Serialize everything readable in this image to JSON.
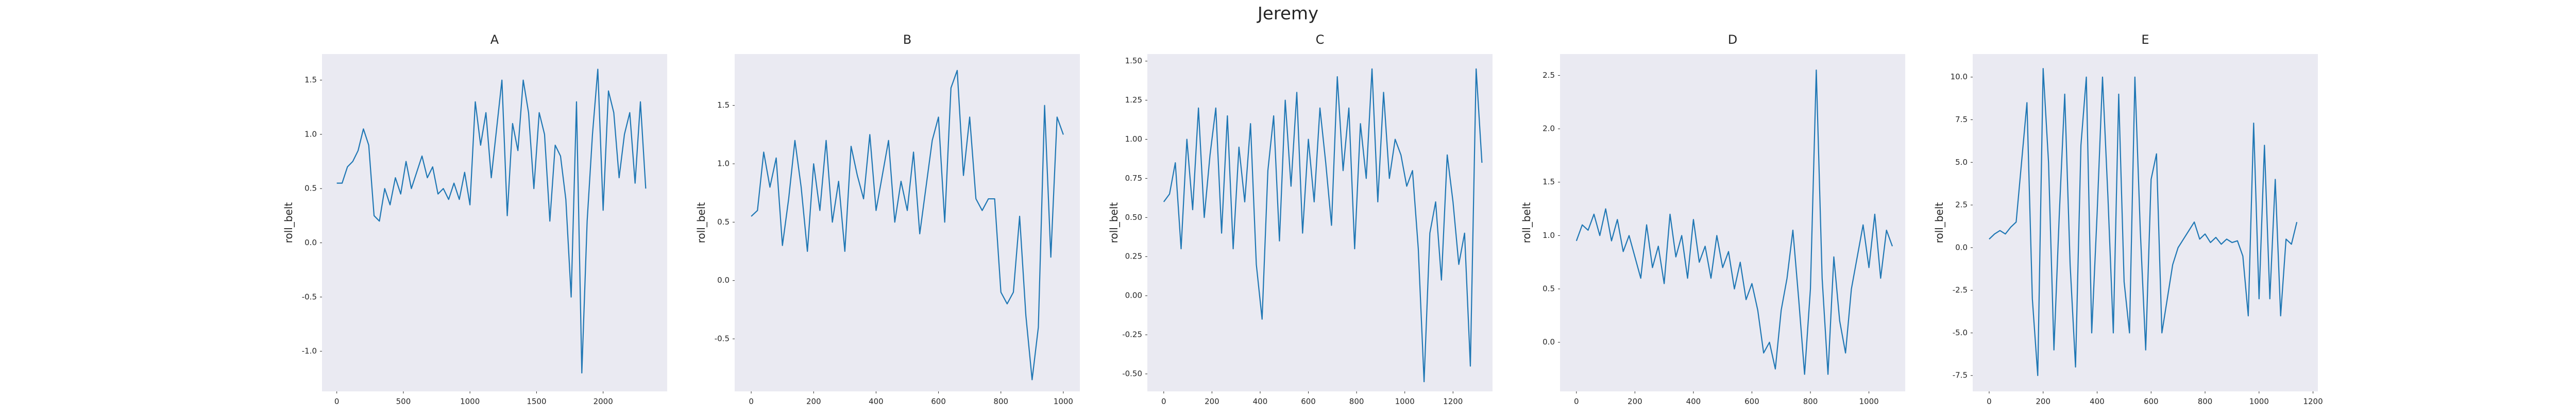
{
  "title": "Jeremy",
  "chart_data": [
    {
      "type": "line",
      "title": "A",
      "y_label": "roll_belt",
      "color": "#1f77b4",
      "grid": false,
      "x": [
        0,
        40,
        80,
        120,
        160,
        200,
        240,
        280,
        320,
        360,
        400,
        440,
        480,
        520,
        560,
        600,
        640,
        680,
        720,
        760,
        800,
        840,
        880,
        920,
        960,
        1000,
        1040,
        1080,
        1120,
        1160,
        1200,
        1240,
        1280,
        1320,
        1360,
        1400,
        1440,
        1480,
        1520,
        1560,
        1600,
        1640,
        1680,
        1720,
        1760,
        1800,
        1840,
        1880,
        1920,
        1960,
        2000,
        2040,
        2080,
        2120,
        2160,
        2200,
        2240,
        2280,
        2320
      ],
      "values": [
        0.55,
        0.55,
        0.7,
        0.75,
        0.85,
        1.05,
        0.9,
        0.25,
        0.2,
        0.5,
        0.35,
        0.6,
        0.45,
        0.75,
        0.5,
        0.65,
        0.8,
        0.6,
        0.7,
        0.45,
        0.5,
        0.4,
        0.55,
        0.4,
        0.65,
        0.35,
        1.3,
        0.9,
        1.2,
        0.6,
        1.05,
        1.5,
        0.25,
        1.1,
        0.85,
        1.5,
        1.2,
        0.5,
        1.2,
        1.0,
        0.2,
        0.9,
        0.8,
        0.4,
        -0.5,
        1.3,
        -1.2,
        0.2,
        1.0,
        1.6,
        0.3,
        1.4,
        1.2,
        0.6,
        1.0,
        1.2,
        0.55,
        1.3,
        0.5
      ],
      "xlim": [
        -111,
        2481
      ],
      "ylim": [
        -1.37,
        1.74
      ],
      "xticks": [
        0,
        500,
        1000,
        1500,
        2000
      ],
      "yticks": [
        {
          "value": -1.0,
          "label": "-1.0"
        },
        -0.5,
        {
          "value": 0.0,
          "label": "0.0"
        },
        0.5,
        {
          "value": 1.0,
          "label": "1.0"
        },
        1.5
      ]
    },
    {
      "type": "line",
      "title": "B",
      "y_label": "roll_belt",
      "color": "#1f77b4",
      "grid": false,
      "x": [
        0,
        20,
        40,
        60,
        80,
        100,
        120,
        140,
        160,
        180,
        200,
        220,
        240,
        260,
        280,
        300,
        320,
        340,
        360,
        380,
        400,
        420,
        440,
        460,
        480,
        500,
        520,
        540,
        560,
        580,
        600,
        620,
        640,
        660,
        680,
        700,
        720,
        740,
        760,
        780,
        800,
        820,
        840,
        860,
        880,
        900,
        920,
        940,
        960,
        980,
        1000
      ],
      "values": [
        0.55,
        0.6,
        1.1,
        0.8,
        1.05,
        0.3,
        0.7,
        1.2,
        0.8,
        0.25,
        1.0,
        0.6,
        1.2,
        0.5,
        0.85,
        0.25,
        1.15,
        0.9,
        0.7,
        1.25,
        0.6,
        0.9,
        1.2,
        0.5,
        0.85,
        0.6,
        1.1,
        0.4,
        0.8,
        1.2,
        1.4,
        0.5,
        1.65,
        1.8,
        0.9,
        1.4,
        0.7,
        0.6,
        0.7,
        0.7,
        -0.1,
        -0.2,
        -0.1,
        0.55,
        -0.3,
        -0.85,
        -0.4,
        1.5,
        0.2,
        1.4,
        1.25
      ],
      "xlim": [
        -53,
        1053
      ],
      "ylim": [
        -0.95,
        1.94
      ],
      "xticks": [
        0,
        200,
        400,
        600,
        800,
        1000
      ],
      "yticks": [
        -0.5,
        {
          "value": 0.0,
          "label": "0.0"
        },
        0.5,
        {
          "value": 1.0,
          "label": "1.0"
        },
        1.5
      ]
    },
    {
      "type": "line",
      "title": "C",
      "y_label": "roll_belt",
      "color": "#1f77b4",
      "grid": false,
      "x": [
        0,
        24,
        48,
        72,
        96,
        120,
        144,
        168,
        192,
        216,
        240,
        264,
        288,
        312,
        336,
        360,
        384,
        408,
        432,
        456,
        480,
        504,
        528,
        552,
        576,
        600,
        624,
        648,
        672,
        696,
        720,
        744,
        768,
        792,
        816,
        840,
        864,
        888,
        912,
        936,
        960,
        984,
        1008,
        1032,
        1056,
        1080,
        1104,
        1128,
        1152,
        1176,
        1200,
        1224,
        1248,
        1272,
        1296,
        1320
      ],
      "values": [
        0.6,
        0.65,
        0.85,
        0.3,
        1.0,
        0.55,
        1.2,
        0.5,
        0.9,
        1.2,
        0.4,
        1.15,
        0.3,
        0.95,
        0.6,
        1.1,
        0.2,
        -0.15,
        0.8,
        1.15,
        0.35,
        1.25,
        0.7,
        1.3,
        0.4,
        1.0,
        0.6,
        1.2,
        0.85,
        0.45,
        1.4,
        0.8,
        1.2,
        0.3,
        1.1,
        0.75,
        1.45,
        0.6,
        1.3,
        0.75,
        1.0,
        0.9,
        0.7,
        0.8,
        0.3,
        -0.55,
        0.4,
        0.6,
        0.1,
        0.9,
        0.6,
        0.2,
        0.4,
        -0.45,
        1.45,
        0.85
      ],
      "xlim": [
        -68,
        1364
      ],
      "ylim": [
        -0.612,
        1.545
      ],
      "xticks": [
        0,
        200,
        400,
        600,
        800,
        1000,
        1200
      ],
      "yticks": [
        {
          "value": -0.5,
          "label": "-0.50"
        },
        {
          "value": -0.25,
          "label": "-0.25"
        },
        {
          "value": 0.0,
          "label": "0.00"
        },
        {
          "value": 0.25,
          "label": "0.25"
        },
        {
          "value": 0.5,
          "label": "0.50"
        },
        {
          "value": 0.75,
          "label": "0.75"
        },
        {
          "value": 1.0,
          "label": "1.00"
        },
        {
          "value": 1.25,
          "label": "1.25"
        },
        {
          "value": 1.5,
          "label": "1.50"
        }
      ]
    },
    {
      "type": "line",
      "title": "D",
      "y_label": "roll_belt",
      "color": "#1f77b4",
      "grid": false,
      "x": [
        0,
        20,
        40,
        60,
        80,
        100,
        120,
        140,
        160,
        180,
        200,
        220,
        240,
        260,
        280,
        300,
        320,
        340,
        360,
        380,
        400,
        420,
        440,
        460,
        480,
        500,
        520,
        540,
        560,
        580,
        600,
        620,
        640,
        660,
        680,
        700,
        720,
        740,
        760,
        780,
        800,
        820,
        840,
        860,
        880,
        900,
        920,
        940,
        960,
        980,
        1000,
        1020,
        1040,
        1060,
        1080
      ],
      "values": [
        0.95,
        1.1,
        1.05,
        1.2,
        1.0,
        1.25,
        0.95,
        1.15,
        0.85,
        1.0,
        0.8,
        0.6,
        1.1,
        0.7,
        0.9,
        0.55,
        1.2,
        0.8,
        1.0,
        0.6,
        1.15,
        0.75,
        0.9,
        0.6,
        1.0,
        0.7,
        0.85,
        0.5,
        0.75,
        0.4,
        0.55,
        0.3,
        -0.1,
        0.0,
        -0.25,
        0.3,
        0.6,
        1.05,
        0.4,
        -0.3,
        0.5,
        2.55,
        0.6,
        -0.3,
        0.8,
        0.2,
        -0.1,
        0.5,
        0.8,
        1.1,
        0.7,
        1.2,
        0.6,
        1.05,
        0.9
      ],
      "xlim": [
        -56,
        1124
      ],
      "ylim": [
        -0.46,
        2.7
      ],
      "xticks": [
        0,
        200,
        400,
        600,
        800,
        1000
      ],
      "yticks": [
        {
          "value": 0.0,
          "label": "0.0"
        },
        0.5,
        {
          "value": 1.0,
          "label": "1.0"
        },
        1.5,
        {
          "value": 2.0,
          "label": "2.0"
        },
        2.5
      ]
    },
    {
      "type": "line",
      "title": "E",
      "y_label": "roll_belt",
      "color": "#1f77b4",
      "grid": false,
      "x": [
        0,
        20,
        40,
        60,
        80,
        100,
        120,
        140,
        160,
        180,
        200,
        220,
        240,
        260,
        280,
        300,
        320,
        340,
        360,
        380,
        400,
        420,
        440,
        460,
        480,
        500,
        520,
        540,
        560,
        580,
        600,
        620,
        640,
        660,
        680,
        700,
        720,
        740,
        760,
        780,
        800,
        820,
        840,
        860,
        880,
        900,
        920,
        940,
        960,
        980,
        1000,
        1020,
        1040,
        1060,
        1080,
        1100,
        1120,
        1140
      ],
      "values": [
        0.5,
        0.8,
        1.0,
        0.8,
        1.2,
        1.5,
        5,
        8.5,
        -3,
        -7.5,
        10.5,
        5,
        -6,
        2,
        9,
        -1,
        -7,
        6,
        10,
        -5,
        2,
        10,
        3,
        -5,
        9,
        -2,
        -5,
        10,
        1,
        -6,
        4,
        5.5,
        -5,
        -3,
        -1,
        0,
        0.5,
        1,
        1.5,
        0.5,
        0.8,
        0.3,
        0.6,
        0.2,
        0.5,
        0.3,
        0.4,
        -0.5,
        -4,
        7.3,
        -3,
        6,
        -3,
        4,
        -4,
        0.5,
        0.2,
        1.5
      ],
      "xlim": [
        -61,
        1218
      ],
      "ylim": [
        -8.43,
        11.35
      ],
      "xticks": [
        0,
        200,
        400,
        600,
        800,
        1000,
        1200
      ],
      "yticks": [
        -7.5,
        {
          "value": -5.0,
          "label": "-5.0"
        },
        -2.5,
        {
          "value": 0.0,
          "label": "0.0"
        },
        2.5,
        {
          "value": 5.0,
          "label": "5.0"
        },
        7.5,
        {
          "value": 10.0,
          "label": "10.0"
        }
      ]
    }
  ]
}
